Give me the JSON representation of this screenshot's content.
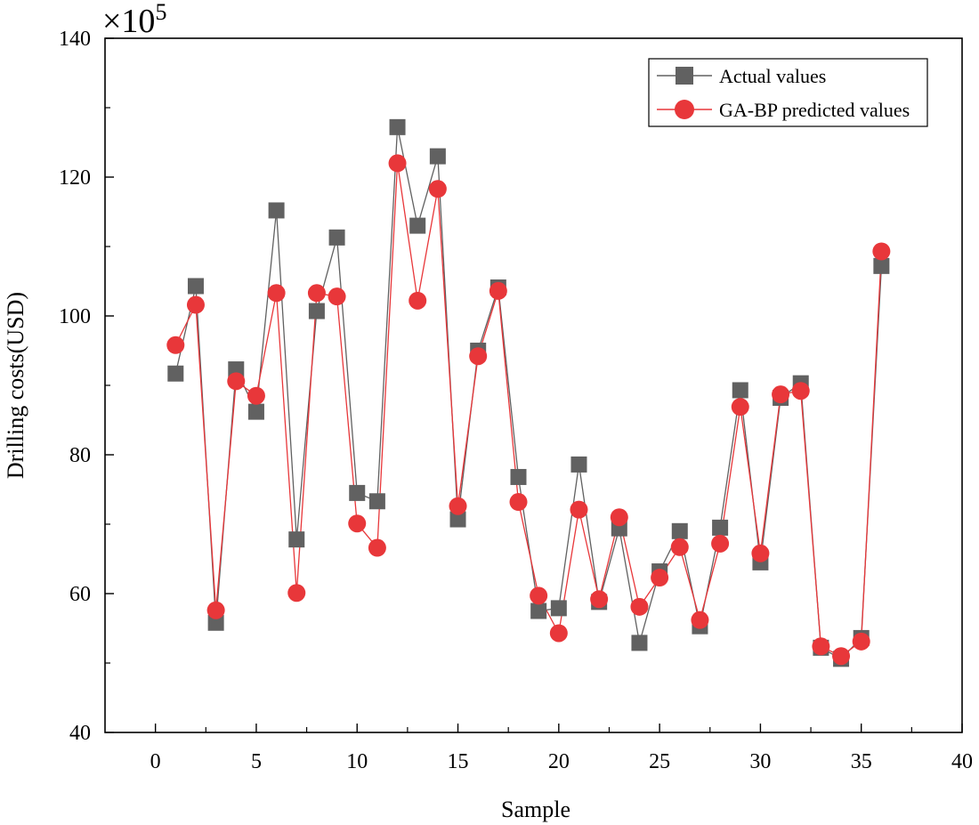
{
  "chart_data": {
    "type": "line",
    "title": "",
    "xlabel": "Sample",
    "ylabel": "Drilling costs(USD)",
    "y_multiplier_label": "×10",
    "y_multiplier_exponent": "5",
    "xlim": [
      -2.5,
      40
    ],
    "ylim": [
      40,
      140
    ],
    "x_ticks": [
      0,
      5,
      10,
      15,
      20,
      25,
      30,
      35,
      40
    ],
    "y_ticks": [
      40,
      60,
      80,
      100,
      120,
      140
    ],
    "legend_position": "top-right",
    "series": [
      {
        "name": "Actual values",
        "marker": "square",
        "color": "#616161",
        "x": [
          1,
          2,
          3,
          4,
          5,
          6,
          7,
          8,
          9,
          10,
          11,
          12,
          13,
          14,
          15,
          16,
          17,
          18,
          19,
          20,
          21,
          22,
          23,
          24,
          25,
          26,
          27,
          28,
          29,
          30,
          31,
          32,
          33,
          34,
          35,
          36
        ],
        "values": [
          91.7,
          104.3,
          55.8,
          92.3,
          86.2,
          115.2,
          67.8,
          100.7,
          111.3,
          74.5,
          73.3,
          127.2,
          113.0,
          123.0,
          70.7,
          95.0,
          104.1,
          76.8,
          57.5,
          57.9,
          78.6,
          58.8,
          69.4,
          52.9,
          63.2,
          69.0,
          55.3,
          69.5,
          89.3,
          64.5,
          88.2,
          90.3,
          52.2,
          50.6,
          53.6,
          107.2
        ]
      },
      {
        "name": "GA-BP predicted values",
        "marker": "circle",
        "color": "#e8373a",
        "x": [
          1,
          2,
          3,
          4,
          5,
          6,
          7,
          8,
          9,
          10,
          11,
          12,
          13,
          14,
          15,
          16,
          17,
          18,
          19,
          20,
          21,
          22,
          23,
          24,
          25,
          26,
          27,
          28,
          29,
          30,
          31,
          32,
          33,
          34,
          35,
          36
        ],
        "values": [
          95.8,
          101.6,
          57.6,
          90.6,
          88.5,
          103.3,
          60.1,
          103.3,
          102.8,
          70.1,
          66.6,
          122.0,
          102.2,
          118.3,
          72.6,
          94.2,
          103.6,
          73.2,
          59.7,
          54.3,
          72.1,
          59.2,
          71.0,
          58.1,
          62.3,
          66.7,
          56.2,
          67.2,
          86.9,
          65.8,
          88.7,
          89.2,
          52.4,
          51.0,
          53.1,
          109.3
        ]
      }
    ]
  }
}
